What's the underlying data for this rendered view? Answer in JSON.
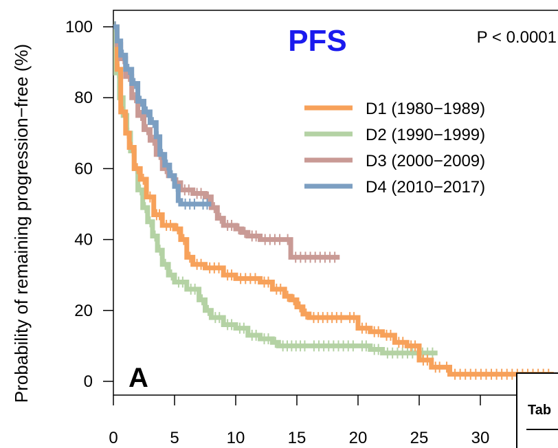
{
  "chart_data": {
    "type": "line",
    "title": "PFS",
    "annotation": "P < 0.0001",
    "panel_label": "A",
    "ylabel": "Probability of remaining progression−free (%)",
    "xlabel": "",
    "xlim": [
      0,
      36
    ],
    "ylim": [
      0,
      100
    ],
    "x_ticks": [
      0,
      5,
      10,
      15,
      20,
      25,
      30
    ],
    "y_ticks": [
      0,
      20,
      40,
      60,
      80,
      100
    ],
    "grid": false,
    "legend_position": "top-right",
    "inset_label": "Tab",
    "series": [
      {
        "name": "D1 (1980−1989)",
        "color": "#f7a15a",
        "points": [
          [
            0,
            100
          ],
          [
            0.3,
            88
          ],
          [
            0.6,
            76
          ],
          [
            1.0,
            70
          ],
          [
            1.3,
            66
          ],
          [
            1.7,
            60
          ],
          [
            2.2,
            57
          ],
          [
            2.7,
            52
          ],
          [
            3.3,
            47
          ],
          [
            4.0,
            44
          ],
          [
            5.0,
            43
          ],
          [
            5.5,
            40
          ],
          [
            6.0,
            35
          ],
          [
            6.5,
            33
          ],
          [
            7.5,
            32
          ],
          [
            9.0,
            30
          ],
          [
            10.0,
            29
          ],
          [
            12.0,
            28
          ],
          [
            13.0,
            26
          ],
          [
            14.0,
            24
          ],
          [
            14.5,
            23
          ],
          [
            15.0,
            21
          ],
          [
            15.5,
            19
          ],
          [
            16.0,
            18
          ],
          [
            19.0,
            18
          ],
          [
            20.0,
            15
          ],
          [
            21.0,
            14
          ],
          [
            22.0,
            13
          ],
          [
            23.0,
            11
          ],
          [
            24.0,
            10
          ],
          [
            25.0,
            6
          ],
          [
            26.0,
            4
          ],
          [
            27.0,
            4
          ],
          [
            27.5,
            2
          ],
          [
            36.0,
            2
          ]
        ]
      },
      {
        "name": "D2 (1990−1999)",
        "color": "#b4d2a4",
        "points": [
          [
            0,
            100
          ],
          [
            0.2,
            87
          ],
          [
            0.5,
            80
          ],
          [
            0.8,
            75
          ],
          [
            1.1,
            70
          ],
          [
            1.4,
            65
          ],
          [
            1.7,
            60
          ],
          [
            2.0,
            54
          ],
          [
            2.4,
            49
          ],
          [
            2.8,
            45
          ],
          [
            3.2,
            41
          ],
          [
            3.6,
            37
          ],
          [
            4.0,
            33
          ],
          [
            4.5,
            30
          ],
          [
            5.0,
            28
          ],
          [
            6.0,
            26
          ],
          [
            7.0,
            23
          ],
          [
            7.5,
            20
          ],
          [
            8.0,
            18
          ],
          [
            9.0,
            16
          ],
          [
            10.0,
            15
          ],
          [
            11.0,
            13
          ],
          [
            12.0,
            12
          ],
          [
            13.0,
            11
          ],
          [
            13.5,
            10
          ],
          [
            16.0,
            10
          ],
          [
            20.0,
            10
          ],
          [
            21.0,
            9
          ],
          [
            22.0,
            8
          ],
          [
            26.5,
            8
          ]
        ]
      },
      {
        "name": "D3 (2000−2009)",
        "color": "#c99a95",
        "points": [
          [
            0,
            100
          ],
          [
            0.3,
            95
          ],
          [
            0.6,
            91
          ],
          [
            1.0,
            86
          ],
          [
            1.5,
            80
          ],
          [
            2.0,
            75
          ],
          [
            2.5,
            71
          ],
          [
            3.0,
            68
          ],
          [
            3.5,
            64
          ],
          [
            4.0,
            60
          ],
          [
            4.5,
            58
          ],
          [
            5.0,
            56
          ],
          [
            5.5,
            54
          ],
          [
            6.5,
            53
          ],
          [
            7.5,
            52
          ],
          [
            8.0,
            49
          ],
          [
            8.5,
            46
          ],
          [
            9.0,
            44
          ],
          [
            10.0,
            43
          ],
          [
            10.5,
            42
          ],
          [
            11.0,
            41
          ],
          [
            12.0,
            40
          ],
          [
            14.0,
            40
          ],
          [
            14.5,
            35
          ],
          [
            18.5,
            35
          ]
        ]
      },
      {
        "name": "D4 (2010−2017)",
        "color": "#7c9fc2",
        "points": [
          [
            0,
            100
          ],
          [
            0.3,
            96
          ],
          [
            0.6,
            92
          ],
          [
            1.0,
            88
          ],
          [
            1.5,
            84
          ],
          [
            2.0,
            79
          ],
          [
            2.5,
            76
          ],
          [
            3.0,
            73
          ],
          [
            3.5,
            69
          ],
          [
            3.8,
            64
          ],
          [
            4.2,
            61
          ],
          [
            4.6,
            58
          ],
          [
            5.0,
            55
          ],
          [
            5.3,
            51
          ],
          [
            5.5,
            50
          ],
          [
            7.0,
            50
          ],
          [
            8.0,
            50
          ]
        ]
      }
    ]
  }
}
